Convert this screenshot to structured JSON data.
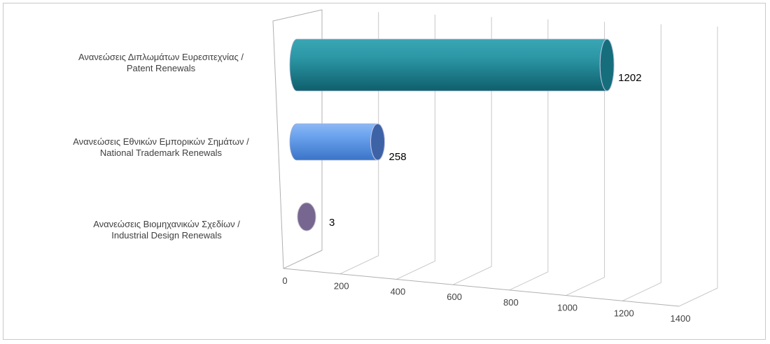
{
  "chart_data": {
    "type": "bar",
    "orientation": "horizontal",
    "style": "3d-cylinder",
    "categories": [
      [
        "Ανανεώσεις Διπλωμάτων Ευρεσιτεχνίας /",
        "Patent Renewals"
      ],
      [
        "Ανανεώσεις Εθνικών Εμπορικών Σημάτων /",
        "National Trademark Renewals"
      ],
      [
        "Ανανεώσεις Βιομηχανικών Σχεδίων  /",
        "Industrial Design Renewals"
      ]
    ],
    "values": [
      1202,
      258,
      3
    ],
    "data_labels": [
      "1202",
      "258",
      "3"
    ],
    "colors": [
      "#1f8a9a",
      "#5b93e0",
      "#7a6a8e"
    ],
    "xlim": [
      0,
      1400
    ],
    "xticks": [
      "0",
      "200",
      "400",
      "600",
      "800",
      "1000",
      "1200",
      "1400"
    ],
    "grid": true,
    "legend": "none",
    "title": "",
    "xlabel": "",
    "ylabel": ""
  }
}
